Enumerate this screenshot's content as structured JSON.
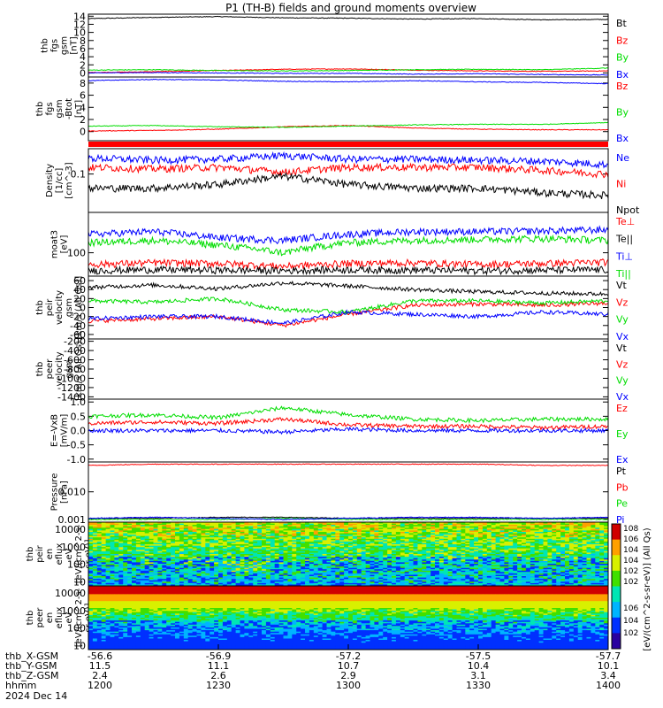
{
  "title": "P1 (TH-B) fields and ground moments overview",
  "colors": {
    "black": "#000000",
    "red": "#ff0000",
    "green": "#00dd00",
    "blue": "#0000ff"
  },
  "chart_data": [
    {
      "type": "line",
      "id": "fgs-all",
      "ylabel": [
        "thb",
        "fgs",
        "gsm",
        "[nT]"
      ],
      "ylim": [
        -1,
        14.5
      ],
      "yticks": [
        "14",
        "12",
        "10",
        "8",
        "6",
        "4",
        "2",
        "0"
      ],
      "series": [
        {
          "name": "Bt",
          "color": "black",
          "values": [
            13.4,
            13.7,
            13.9,
            13.6,
            13.5,
            13.3,
            13.4,
            13.1,
            13.2
          ]
        },
        {
          "name": "Bz",
          "color": "red",
          "values": [
            0.1,
            0.3,
            0.6,
            0.9,
            1.0,
            0.7,
            0.5,
            0.4,
            0.5
          ]
        },
        {
          "name": "By",
          "color": "green",
          "values": [
            0.7,
            0.8,
            0.6,
            0.5,
            0.6,
            0.8,
            0.9,
            0.8,
            1.2
          ]
        },
        {
          "name": "Bx",
          "color": "blue",
          "values": [
            0.0,
            0.1,
            0.0,
            -0.1,
            -0.1,
            -0.3,
            -0.2,
            -0.4,
            -0.5
          ]
        }
      ]
    },
    {
      "type": "line",
      "id": "fgs-zoom",
      "ylabel": [
        "thb",
        "fgs",
        "gsm",
        "-Btot",
        "[nT]"
      ],
      "ylim": [
        -1.5,
        9
      ],
      "yticks": [
        "8",
        "6",
        "4",
        "2",
        "0"
      ],
      "series": [
        {
          "name": "Bz",
          "color": "red",
          "values": [
            0.1,
            0.2,
            0.4,
            0.8,
            1.0,
            0.6,
            0.4,
            0.3,
            0.3
          ]
        },
        {
          "name": "By",
          "color": "green",
          "values": [
            0.9,
            1.0,
            0.8,
            0.7,
            0.9,
            1.1,
            1.2,
            1.2,
            1.5
          ]
        },
        {
          "name": "Bx",
          "color": "blue",
          "values": [
            8.4,
            8.6,
            8.5,
            8.3,
            8.2,
            8.4,
            8.2,
            8.1,
            7.9
          ]
        }
      ]
    },
    {
      "type": "line",
      "id": "density",
      "scale": "log",
      "ylabel": [
        "Density",
        "[1/cc]",
        "[cm^-3]"
      ],
      "ylim": [
        0.015,
        0.35
      ],
      "yticks": [
        "0.1"
      ],
      "series": [
        {
          "name": "Ne",
          "color": "blue",
          "values": [
            0.22,
            0.2,
            0.21,
            0.25,
            0.21,
            0.21,
            0.2,
            0.19,
            0.16
          ]
        },
        {
          "name": "Ni",
          "color": "red",
          "values": [
            0.14,
            0.13,
            0.14,
            0.11,
            0.14,
            0.14,
            0.14,
            0.12,
            0.1
          ]
        },
        {
          "name": "Npot",
          "color": "black",
          "values": [
            0.05,
            0.05,
            0.06,
            0.09,
            0.06,
            0.05,
            0.05,
            0.04,
            0.035
          ]
        }
      ]
    },
    {
      "type": "line",
      "id": "temperature",
      "scale": "log",
      "ylabel": [
        "moat3",
        "[eV]"
      ],
      "ylim": [
        30,
        800
      ],
      "yticks": [
        "100"
      ],
      "series": [
        {
          "name": "Te⊥",
          "color": "red",
          "values": [
            55,
            60,
            58,
            50,
            58,
            60,
            55,
            58,
            62
          ]
        },
        {
          "name": "Te||",
          "color": "black",
          "values": [
            40,
            42,
            41,
            40,
            42,
            41,
            40,
            41,
            42
          ]
        },
        {
          "name": "Ti⊥",
          "color": "blue",
          "values": [
            260,
            300,
            220,
            190,
            260,
            300,
            300,
            310,
            330
          ]
        },
        {
          "name": "Ti||",
          "color": "green",
          "values": [
            170,
            190,
            150,
            100,
            170,
            190,
            200,
            210,
            190
          ]
        }
      ]
    },
    {
      "type": "line",
      "id": "velocity",
      "ylabel": [
        "thb",
        "peir",
        "velocity",
        "gsm",
        "[km/s (All Qs)]"
      ],
      "ylim": [
        -70,
        70
      ],
      "yticks": [
        "60",
        "40",
        "20",
        "0",
        "-20",
        "-40",
        "-60"
      ],
      "series": [
        {
          "name": "Vt",
          "color": "black",
          "values": [
            45,
            50,
            42,
            55,
            48,
            40,
            35,
            32,
            30
          ]
        },
        {
          "name": "Vz",
          "color": "red",
          "values": [
            -30,
            -25,
            -20,
            -40,
            -15,
            5,
            8,
            5,
            10
          ]
        },
        {
          "name": "Vy",
          "color": "green",
          "values": [
            15,
            12,
            20,
            -5,
            -10,
            15,
            15,
            10,
            15
          ]
        },
        {
          "name": "Vx",
          "color": "blue",
          "values": [
            -25,
            -20,
            -20,
            -35,
            -10,
            -15,
            -20,
            -10,
            -15
          ]
        }
      ]
    },
    {
      "type": "line",
      "id": "velocity-peer",
      "ylabel": [
        "thb",
        "peer",
        "velocity",
        "gsm",
        "[km/s (All Qs)]"
      ],
      "ylim": [
        -1450,
        -150
      ],
      "yticks": [
        "-200",
        "-400",
        "-600",
        "-800",
        "-1000",
        "-1200",
        "-1400"
      ],
      "series": [
        {
          "name": "Vt",
          "color": "black",
          "values": []
        },
        {
          "name": "Vz",
          "color": "red",
          "values": []
        },
        {
          "name": "Vy",
          "color": "green",
          "values": []
        },
        {
          "name": "Vx",
          "color": "blue",
          "values": []
        }
      ]
    },
    {
      "type": "line",
      "id": "efield",
      "ylabel": [
        "E=-VxB",
        "[mV/m]"
      ],
      "ylim": [
        -1.1,
        1.1
      ],
      "yticks": [
        "1.0",
        "0.5",
        "0.0",
        "-0.5",
        "-1.0"
      ],
      "series": [
        {
          "name": "Ez",
          "color": "red",
          "values": [
            0.25,
            0.3,
            0.25,
            0.4,
            0.2,
            0.15,
            0.15,
            0.1,
            0.15
          ]
        },
        {
          "name": "Ey",
          "color": "green",
          "values": [
            0.5,
            0.55,
            0.45,
            0.8,
            0.55,
            0.4,
            0.35,
            0.4,
            0.4
          ]
        },
        {
          "name": "Ex",
          "color": "blue",
          "values": [
            0.0,
            0.0,
            0.0,
            -0.05,
            0.05,
            0.0,
            0.0,
            0.0,
            0.0
          ]
        }
      ]
    },
    {
      "type": "line",
      "id": "pressure",
      "scale": "log",
      "ylabel": [
        "Pressure",
        "[nPa]"
      ],
      "ylim": [
        0.0008,
        0.12
      ],
      "yticks": [
        "0.010",
        "0.001"
      ],
      "series": [
        {
          "name": "Pt",
          "color": "black",
          "values": [
            0.0011,
            0.0011,
            0.0012,
            0.0012,
            0.0011,
            0.0011,
            0.0011,
            0.0011,
            0.0011
          ]
        },
        {
          "name": "Pb",
          "color": "red",
          "values": [
            0.09,
            0.1,
            0.1,
            0.1,
            0.1,
            0.1,
            0.1,
            0.09,
            0.09
          ]
        },
        {
          "name": "Pe",
          "color": "green",
          "values": [
            0.001,
            0.001,
            0.001,
            0.0011,
            0.001,
            0.001,
            0.001,
            0.001,
            0.001
          ]
        },
        {
          "name": "Pi",
          "color": "blue",
          "values": [
            0.0011,
            0.0012,
            0.0011,
            0.001,
            0.0011,
            0.0012,
            0.0012,
            0.0011,
            0.0012
          ]
        }
      ]
    },
    {
      "type": "heatmap",
      "id": "ion-spec",
      "scale": "log",
      "ylabel": [
        "thb",
        "peir",
        "en",
        "eflux",
        "eV",
        "[eV/(cm^2-s-",
        "sr-eV)]"
      ],
      "ylim": [
        6,
        25000
      ],
      "yticks": [
        "10000",
        "1000",
        "100",
        "10"
      ],
      "zlim_exp": [
        2,
        8
      ]
    },
    {
      "type": "heatmap",
      "id": "electron-spec",
      "scale": "log",
      "ylabel": [
        "thb",
        "peer",
        "en",
        "eflux",
        "eV",
        "[eV/(cm^2-s-",
        "sr-eV)]"
      ],
      "ylim": [
        6,
        25000
      ],
      "yticks": [
        "10000",
        "1000",
        "100",
        "10"
      ],
      "zlim_exp": [
        2,
        8
      ]
    }
  ],
  "colorbars": [
    {
      "ticks": [
        "10^8",
        "10^6",
        "10^4",
        "10^4",
        "10^2",
        "10^2"
      ]
    },
    {
      "ticks": [
        "10^6",
        "10^4",
        "10^2"
      ]
    }
  ],
  "colorbar_label": "[eV/(cm^2-s-sr-eV)] (All Qs)",
  "x_axis": {
    "rows": [
      {
        "label": "thb_X-GSM",
        "values": [
          "-56.6",
          "-56.9",
          "-57.2",
          "-57.5",
          "-57.7"
        ]
      },
      {
        "label": "thb_Y-GSM",
        "values": [
          "11.5",
          "11.1",
          "10.7",
          "10.4",
          "10.1"
        ]
      },
      {
        "label": "thb_Z-GSM",
        "values": [
          "2.4",
          "2.6",
          "2.9",
          "3.1",
          "3.4"
        ]
      },
      {
        "label": "hhmm",
        "values": [
          "1200",
          "1230",
          "1300",
          "1330",
          "1400"
        ]
      }
    ],
    "date": "2024 Dec 14"
  }
}
